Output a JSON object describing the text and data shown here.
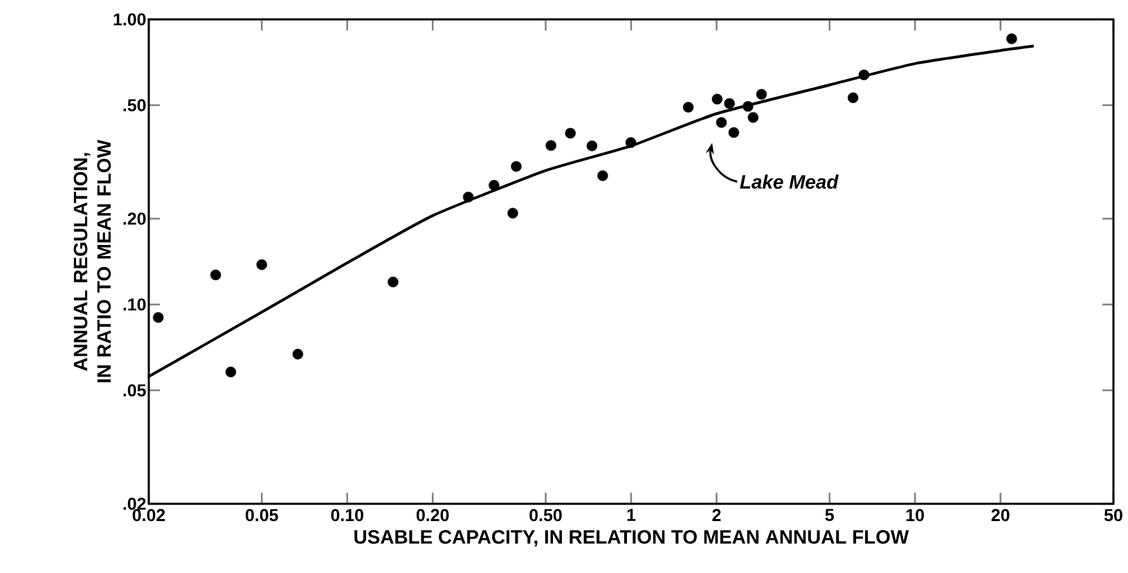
{
  "chart_data": {
    "type": "scatter",
    "xlabel": "USABLE CAPACITY, IN RELATION TO MEAN ANNUAL FLOW",
    "ylabel": "ANNUAL REGULATION, IN RATIO TO MEAN FLOW",
    "log": "xy",
    "grid": false,
    "xlim": [
      0.02,
      50
    ],
    "ylim": [
      0.02,
      1
    ],
    "xticks": [
      0.02,
      0.05,
      {
        "value": 0.1,
        "label": "0.10"
      },
      {
        "value": 0.2,
        "label": "0.20"
      },
      {
        "value": 0.5,
        "label": "0.50"
      },
      1,
      2,
      5,
      10,
      20,
      50
    ],
    "yticks": [
      {
        "value": 0.02,
        "label": ".02"
      },
      {
        "value": 0.05,
        "label": ".05"
      },
      {
        "value": 0.1,
        "label": ".10"
      },
      {
        "value": 0.2,
        "label": ".20"
      },
      {
        "value": 0.5,
        "label": ".50"
      },
      {
        "value": 1,
        "label": "1.00"
      }
    ],
    "annotations": [
      "Lake Mead"
    ],
    "series": [
      {
        "color": "#000000",
        "marker": "circle",
        "x": [
          0.0216,
          0.0344,
          0.0389,
          0.05,
          0.067,
          0.145,
          0.267,
          0.329,
          0.383,
          0.394,
          0.522,
          0.611,
          0.728,
          0.794,
          0.998,
          1.59,
          2.01,
          2.08,
          2.22,
          2.3,
          2.58,
          2.69,
          2.88,
          6.05,
          6.61,
          21.9
        ],
        "values": [
          0.09,
          0.127,
          0.058,
          0.138,
          0.067,
          0.12,
          0.238,
          0.262,
          0.209,
          0.305,
          0.361,
          0.399,
          0.36,
          0.283,
          0.37,
          0.492,
          0.525,
          0.435,
          0.507,
          0.401,
          0.495,
          0.453,
          0.546,
          0.531,
          0.639,
          0.855
        ]
      },
      {
        "type": "line",
        "color": "#000000",
        "marker": "none",
        "x": [
          0.02,
          0.05,
          0.1,
          0.2,
          0.5,
          1,
          2,
          5,
          10,
          20,
          26.2
        ],
        "values": [
          0.0559,
          0.094,
          0.14,
          0.205,
          0.295,
          0.36,
          0.467,
          0.589,
          0.7,
          0.778,
          0.806
        ]
      }
    ]
  }
}
